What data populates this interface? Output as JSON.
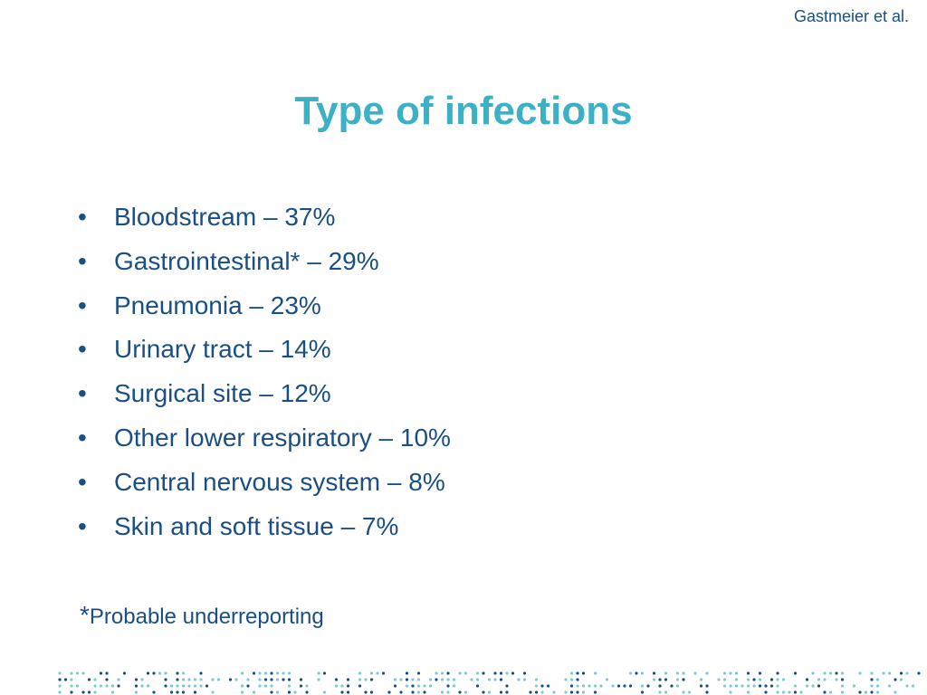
{
  "slide": {
    "attribution": "Gastmeier et al.",
    "title": "Type of infections",
    "bullets": [
      "Bloodstream – 37%",
      "Gastrointestinal* – 29%",
      "Pneumonia – 23%",
      "Urinary tract – 14%",
      "Surgical site – 12%",
      "Other lower respiratory – 10%",
      "Central nervous system – 8%",
      "Skin and soft tissue – 7%"
    ],
    "bullet_symbol": "•",
    "footnote_mark": "*",
    "footnote_text": "Probable underreporting"
  },
  "colors": {
    "title": "#3cb0c4",
    "text": "#1a4f86",
    "dots_light": "#7fc9d6",
    "dots_dark": "#1a4f86"
  }
}
